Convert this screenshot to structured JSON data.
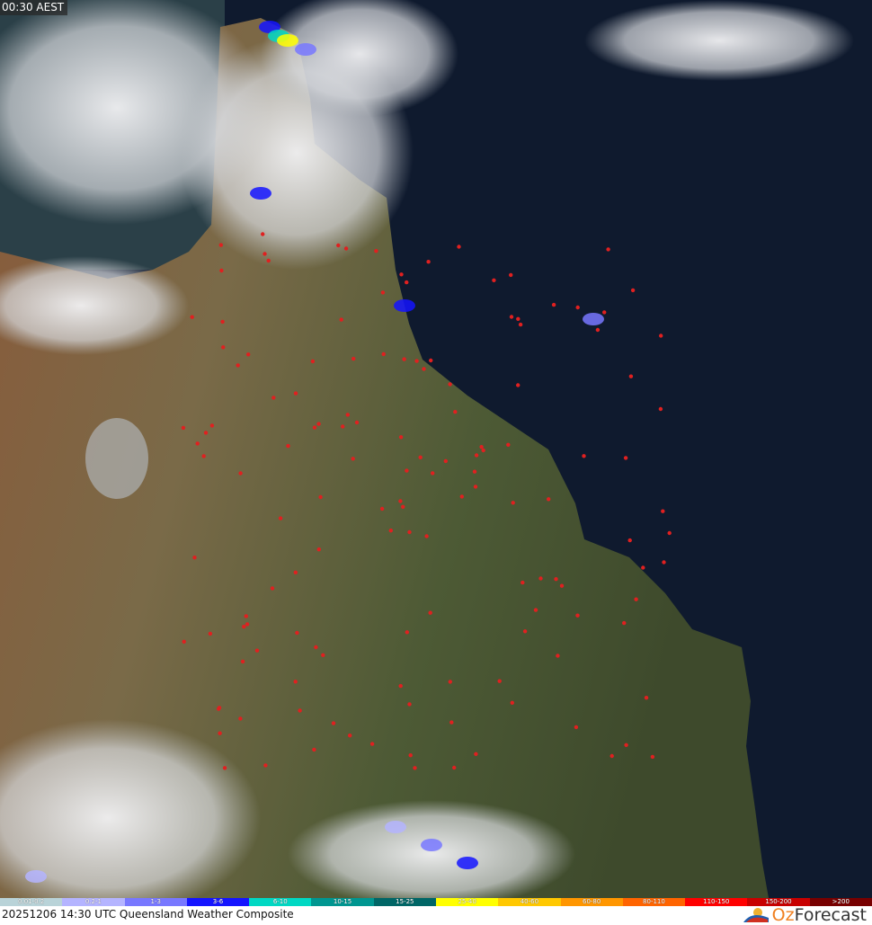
{
  "header": {
    "time_label": "00:30 AEST"
  },
  "footer": {
    "title": "20251206 14:30 UTC Queensland Weather Composite",
    "brand_prefix": "Oz",
    "brand_suffix": "Forecast"
  },
  "map": {
    "colors": {
      "ocean": "#0f1a2e",
      "land": "#6b5e3c",
      "land_green": "#4a5a32",
      "cloud": "#e8e8ec",
      "lightning": "#e02020"
    }
  },
  "legend": {
    "unit_scale": "rainfall rate",
    "items": [
      {
        "label": "0.01-0.2",
        "color": "#b9d3d8"
      },
      {
        "label": "0.2-1",
        "color": "#b4b4ff"
      },
      {
        "label": "1-3",
        "color": "#7878ff"
      },
      {
        "label": "3-6",
        "color": "#1414ff"
      },
      {
        "label": "6-10",
        "color": "#00d8c3"
      },
      {
        "label": "10-15",
        "color": "#009690"
      },
      {
        "label": "15-25",
        "color": "#006666"
      },
      {
        "label": "25-40",
        "color": "#ffff00"
      },
      {
        "label": "40-60",
        "color": "#ffc800"
      },
      {
        "label": "60-80",
        "color": "#ff9600"
      },
      {
        "label": "80-110",
        "color": "#ff6400"
      },
      {
        "label": "110-150",
        "color": "#ff0000"
      },
      {
        "label": "150-200",
        "color": "#c80000"
      },
      {
        "label": ">200",
        "color": "#780000"
      }
    ]
  }
}
